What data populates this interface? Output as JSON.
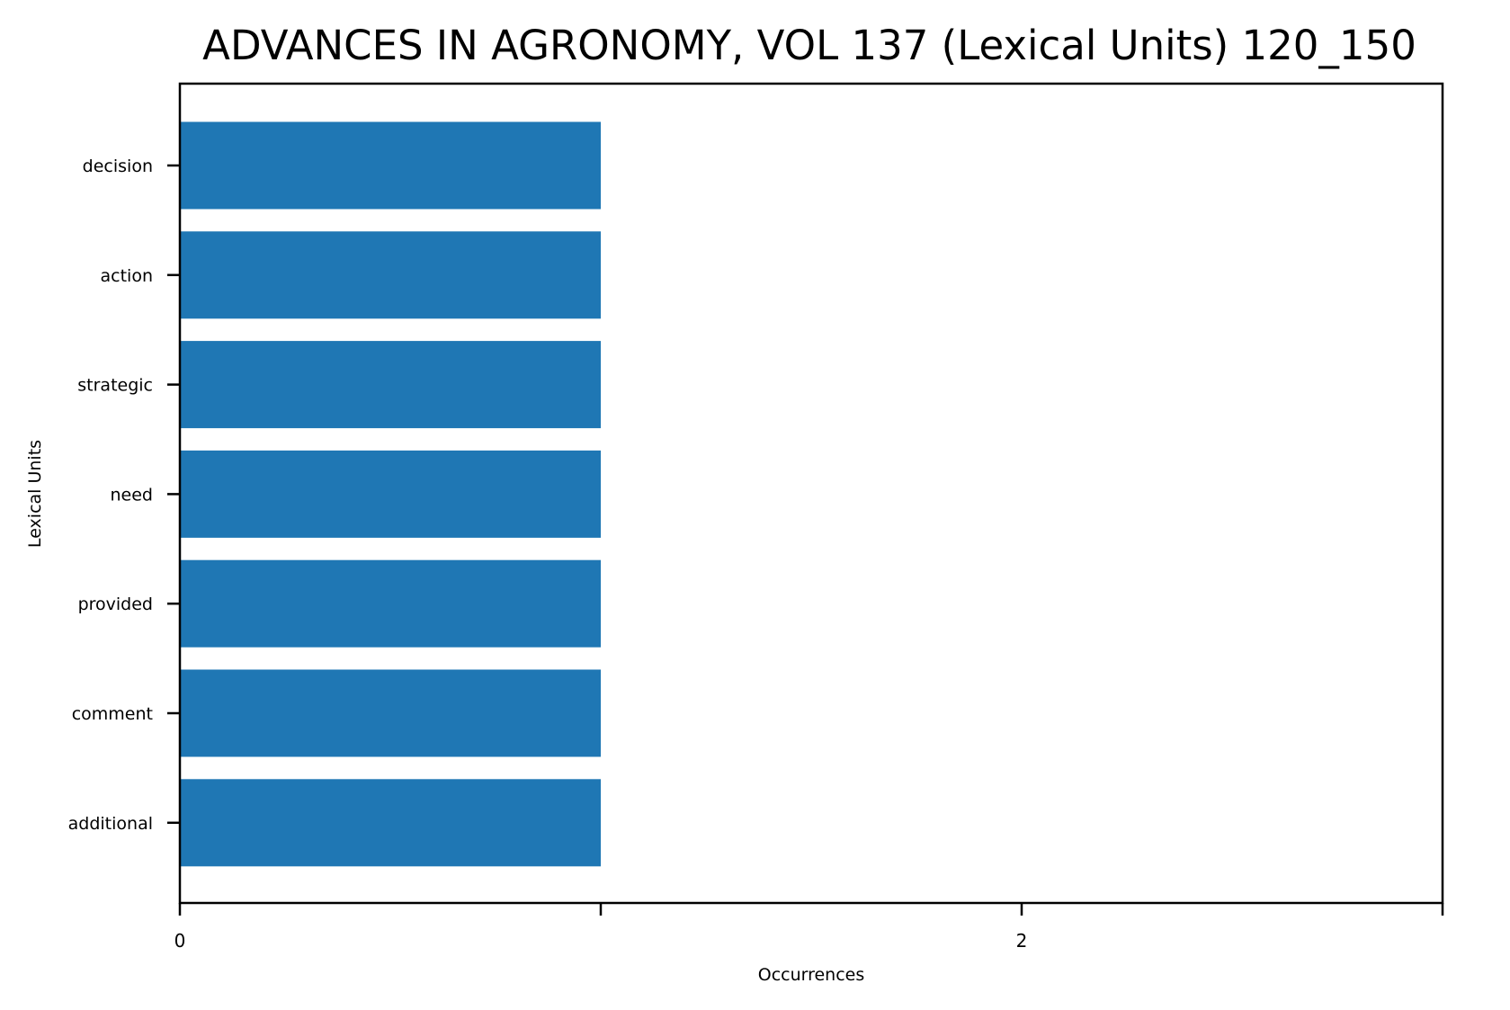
{
  "chart_data": {
    "type": "bar",
    "orientation": "horizontal",
    "title": "ADVANCES IN AGRONOMY, VOL 137 (Lexical Units) 120_150",
    "xlabel": "Occurrences",
    "ylabel": "Lexical Units",
    "categories": [
      "decision",
      "action",
      "strategic",
      "need",
      "provided",
      "comment",
      "additional"
    ],
    "values": [
      1,
      1,
      1,
      1,
      1,
      1,
      1
    ],
    "xlim": [
      0,
      3
    ],
    "x_ticks": [
      0,
      1,
      2,
      3
    ],
    "x_tick_labels": [
      "0",
      "",
      "2",
      ""
    ],
    "grid": false,
    "legend": "none",
    "bar_color": "#1f77b4"
  }
}
